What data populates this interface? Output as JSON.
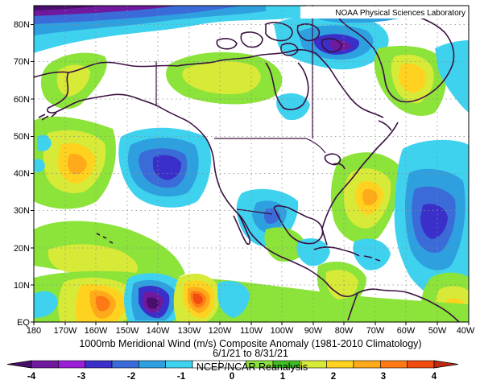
{
  "credit": "NOAA Physical Sciences Laboratory",
  "title": "1000mb Meridional Wind (m/s) Composite Anomaly (1981-2010 Climatology)",
  "date_range": "6/1/21 to 8/31/21",
  "source": "NCEP/NCAR Reanalysis",
  "lat_labels": [
    "80N",
    "70N",
    "60N",
    "50N",
    "40N",
    "30N",
    "20N",
    "10N",
    "EQ"
  ],
  "lon_labels": [
    "180",
    "170W",
    "160W",
    "150W",
    "140W",
    "130W",
    "120W",
    "110W",
    "100W",
    "90W",
    "80W",
    "70W",
    "60W",
    "50W",
    "40W"
  ],
  "colorbar": {
    "ticks": [
      "-4",
      "-3",
      "-2",
      "-1",
      "0",
      "1",
      "2",
      "3",
      "4"
    ],
    "colors": [
      "#4a0f6e",
      "#6f1a9e",
      "#9a1fd6",
      "#3a2fc9",
      "#3b6bd9",
      "#2ea0e0",
      "#3fd2ee",
      "#ffffff",
      "#ffffff",
      "#8ce33a",
      "#3fbf24",
      "#d8ea38",
      "#ffd21f",
      "#ffaa1a",
      "#ff7a14",
      "#f24b0f",
      "#c4280c"
    ]
  },
  "chart_data": {
    "type": "heatmap",
    "variable": "1000mb Meridional Wind Composite Anomaly",
    "units": "m/s",
    "period": "6/1/21 to 8/31/21",
    "lon_range": [
      -180,
      -40
    ],
    "lat_range": [
      0,
      85
    ],
    "color_range": [
      -4,
      4
    ],
    "anomaly_centers": [
      {
        "lon": -127,
        "lat": 6,
        "value": 4
      },
      {
        "lon": -160,
        "lat": 5,
        "value": 3
      },
      {
        "lon": -143,
        "lat": 5,
        "value": -3.5
      },
      {
        "lon": -136,
        "lat": 40,
        "value": -2.5
      },
      {
        "lon": -145,
        "lat": 38,
        "value": -2
      },
      {
        "lon": -158,
        "lat": 44,
        "value": 2.5
      },
      {
        "lon": -168,
        "lat": 68,
        "value": 2
      },
      {
        "lon": -85,
        "lat": 72,
        "value": -3
      },
      {
        "lon": -70,
        "lat": 80,
        "value": -2
      },
      {
        "lon": -53,
        "lat": 67,
        "value": 2.5
      },
      {
        "lon": -69,
        "lat": 37,
        "value": 2.5
      },
      {
        "lon": -45,
        "lat": 28,
        "value": -2.5
      },
      {
        "lon": -100,
        "lat": 30,
        "value": -1.5
      },
      {
        "lon": -110,
        "lat": 8,
        "value": 1.5
      },
      {
        "lon": -92,
        "lat": 15,
        "value": 1.5
      },
      {
        "lon": -48,
        "lat": 3,
        "value": 2.5
      }
    ]
  }
}
